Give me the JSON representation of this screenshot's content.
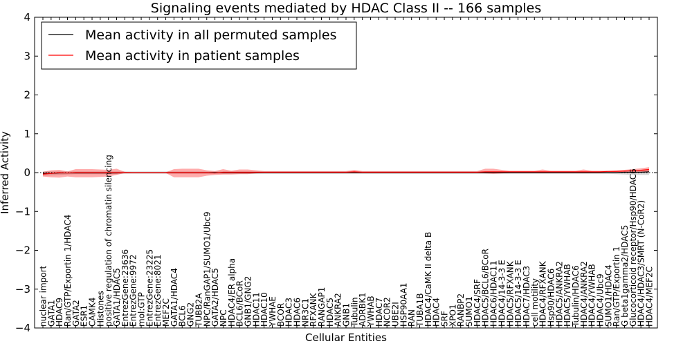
{
  "chart_data": {
    "type": "line",
    "title": "Signaling events mediated by HDAC Class II -- 166 samples",
    "xlabel": "Cellular Entities",
    "ylabel": "Inferred Activity",
    "ylim": [
      -4,
      4
    ],
    "yticks": [
      -4,
      -3,
      -2,
      -1,
      0,
      1,
      2,
      3,
      4
    ],
    "ytick_labels": [
      "−4",
      "−3",
      "−2",
      "−1",
      "0",
      "1",
      "2",
      "3",
      "4"
    ],
    "legend": {
      "location": "top-left",
      "entries": [
        {
          "label": "Mean activity in all permuted samples",
          "color": "#000000"
        },
        {
          "label": "Mean activity in patient samples",
          "color": "#ff0000"
        }
      ]
    },
    "categories": [
      "nuclear import",
      "GATA1",
      "HDAC9",
      "Ran/GTP/Exportin 1/HDAC4",
      "GATA2",
      "ESR1",
      "CAMK4",
      "Histones",
      "positive regulation of chromatin silencing",
      "GATA1/HDAC5",
      "EntrezGene:23636",
      "EntrezGene:9972",
      "mol:GTP",
      "EntrezGene:23225",
      "EntrezGene:8021",
      "MEF2C",
      "GATA1/HDAC4",
      "BCL6",
      "GNG2",
      "TUBB2A",
      "NPC/RanGAP1/SUMO1/Ubc9",
      "GATA2/HDAC5",
      "NPC",
      "HDAC4/ER alpha",
      "BCL6/BCoR",
      "GNB1/GNG2",
      "HDAC11",
      "HDAC10",
      "YWHAE",
      "BCOR",
      "HDAC3",
      "HDAC6",
      "NR3C1",
      "RFXANK",
      "RANGAP1",
      "HDAC5",
      "ANKRA2",
      "GNB1",
      "Tubulin",
      "ADRBK1",
      "YWHAB",
      "HDAC7",
      "NCOR2",
      "UBE2I",
      "HSP90AA1",
      "RAN",
      "TUBA1B",
      "HDAC4/CaMK II delta B",
      "HDAC4",
      "SRF",
      "XPO1",
      "RANBP2",
      "SUMO1",
      "HDAC4/SRF",
      "HDAC5/BCL6/BCoR",
      "HDAC6/HDAC11",
      "HDAC4/14-3-3 E",
      "HDAC5/RFXANK",
      "HDAC5/14-3-3 E",
      "HDAC7/HDAC3",
      "cell motility",
      "HDAC4/RFXANK",
      "Hsp90/HDAC6",
      "HDAC5/ANKRA2",
      "HDAC5/YWHAB",
      "Tubulin/HDAC6",
      "HDAC4/ANKRA2",
      "HDAC4/YWHAB",
      "HDAC4/Ubc9",
      "SUMO1/HDAC4",
      "Ran/GTP/Exportin 1",
      "G beta1gamma2/HDAC5",
      "Glucocorticoid receptor/Hsp90/HDAC6",
      "HDAC4/HDAC3/SMRT (N-CoR2)",
      "HDAC4/MEF2C"
    ],
    "series": [
      {
        "name": "Mean activity in patient samples",
        "color": "#ff0000",
        "values": [
          -0.04,
          -0.02,
          0.0,
          -0.01,
          0.0,
          0.0,
          0.0,
          0.0,
          0.0,
          0.0,
          0.0,
          0.0,
          0.0,
          0.0,
          0.0,
          0.0,
          0.0,
          0.0,
          0.0,
          0.0,
          0.0,
          -0.01,
          0.01,
          0.01,
          0.01,
          0.01,
          0.01,
          0.01,
          0.01,
          0.01,
          0.01,
          0.01,
          0.01,
          0.01,
          0.01,
          0.01,
          0.01,
          0.01,
          0.02,
          0.01,
          0.01,
          0.01,
          0.01,
          0.01,
          0.01,
          0.01,
          0.01,
          0.01,
          0.01,
          0.01,
          0.01,
          0.01,
          0.01,
          0.01,
          0.02,
          0.02,
          0.02,
          0.02,
          0.02,
          0.02,
          0.02,
          0.02,
          0.02,
          0.02,
          0.02,
          0.02,
          0.02,
          0.02,
          0.02,
          0.03,
          0.03,
          0.04,
          0.05,
          0.06,
          0.08
        ],
        "lower": [
          -0.1,
          -0.12,
          -0.13,
          -0.1,
          -0.12,
          -0.12,
          -0.12,
          -0.11,
          -0.1,
          -0.06,
          -0.01,
          -0.01,
          -0.01,
          -0.01,
          -0.01,
          -0.01,
          -0.12,
          -0.12,
          -0.12,
          -0.12,
          -0.08,
          -0.06,
          -0.05,
          -0.05,
          -0.04,
          -0.04,
          -0.02,
          -0.01,
          -0.01,
          -0.01,
          -0.01,
          -0.01,
          -0.01,
          -0.01,
          -0.01,
          -0.01,
          -0.01,
          -0.01,
          -0.01,
          -0.01,
          -0.01,
          -0.01,
          -0.01,
          -0.01,
          -0.01,
          -0.01,
          -0.01,
          -0.01,
          -0.01,
          -0.01,
          -0.01,
          -0.01,
          -0.01,
          -0.01,
          -0.02,
          -0.03,
          -0.02,
          -0.01,
          -0.01,
          -0.01,
          -0.01,
          -0.01,
          -0.01,
          -0.01,
          -0.01,
          -0.01,
          -0.01,
          -0.01,
          -0.01,
          -0.01,
          -0.01,
          -0.01,
          -0.01,
          0.0,
          0.01
        ],
        "upper": [
          0.02,
          0.06,
          0.07,
          0.03,
          0.09,
          0.09,
          0.09,
          0.08,
          0.07,
          0.1,
          0.02,
          0.01,
          0.01,
          0.01,
          0.01,
          0.01,
          0.09,
          0.1,
          0.1,
          0.1,
          0.06,
          0.04,
          0.09,
          0.05,
          0.08,
          0.08,
          0.06,
          0.04,
          0.04,
          0.04,
          0.04,
          0.04,
          0.04,
          0.04,
          0.04,
          0.04,
          0.04,
          0.04,
          0.07,
          0.04,
          0.04,
          0.04,
          0.04,
          0.04,
          0.04,
          0.04,
          0.04,
          0.04,
          0.04,
          0.04,
          0.04,
          0.04,
          0.04,
          0.04,
          0.1,
          0.1,
          0.07,
          0.05,
          0.05,
          0.05,
          0.05,
          0.08,
          0.05,
          0.05,
          0.05,
          0.05,
          0.08,
          0.05,
          0.05,
          0.05,
          0.06,
          0.07,
          0.09,
          0.11,
          0.14
        ]
      },
      {
        "name": "Mean activity in all permuted samples",
        "color": "#000000",
        "values": [
          -0.02,
          -0.02,
          -0.01,
          -0.01,
          -0.01,
          -0.01,
          -0.01,
          -0.01,
          -0.01,
          -0.01,
          0.0,
          0.0,
          0.0,
          0.0,
          0.0,
          0.0,
          0.0,
          0.0,
          0.0,
          0.0,
          0.0,
          0.0,
          0.0,
          0.0,
          0.0,
          0.0,
          0.0,
          0.0,
          0.0,
          0.0,
          0.0,
          0.0,
          0.0,
          0.0,
          0.0,
          0.0,
          0.0,
          0.0,
          0.0,
          0.0,
          0.0,
          0.0,
          0.0,
          0.0,
          0.0,
          0.0,
          0.0,
          0.0,
          0.0,
          0.0,
          0.0,
          0.0,
          0.0,
          0.0,
          0.0,
          0.0,
          0.0,
          0.0,
          0.0,
          0.0,
          0.0,
          0.0,
          0.0,
          0.0,
          0.0,
          0.0,
          0.0,
          0.0,
          0.0,
          0.0,
          0.0,
          0.01,
          0.01,
          0.01,
          0.02
        ],
        "lower": [
          -0.08,
          -0.07,
          -0.06,
          -0.05,
          -0.04,
          -0.04,
          -0.04,
          -0.04,
          -0.04,
          -0.04,
          -0.03,
          -0.03,
          -0.03,
          -0.03,
          -0.03,
          -0.03,
          -0.03,
          -0.03,
          -0.03,
          -0.03,
          -0.03,
          -0.03,
          -0.03,
          -0.03,
          -0.03,
          -0.03,
          -0.03,
          -0.03,
          -0.03,
          -0.03,
          -0.03,
          -0.03,
          -0.03,
          -0.03,
          -0.03,
          -0.03,
          -0.03,
          -0.03,
          -0.03,
          -0.03,
          -0.03,
          -0.03,
          -0.03,
          -0.03,
          -0.03,
          -0.03,
          -0.03,
          -0.03,
          -0.03,
          -0.03,
          -0.03,
          -0.03,
          -0.03,
          -0.03,
          -0.03,
          -0.03,
          -0.03,
          -0.03,
          -0.03,
          -0.03,
          -0.03,
          -0.03,
          -0.03,
          -0.03,
          -0.03,
          -0.03,
          -0.03,
          -0.03,
          -0.03,
          -0.03,
          -0.04,
          -0.05,
          -0.06,
          -0.06,
          -0.06
        ],
        "upper": [
          0.03,
          0.03,
          0.03,
          0.03,
          0.03,
          0.03,
          0.03,
          0.03,
          0.03,
          0.03,
          0.03,
          0.03,
          0.03,
          0.03,
          0.03,
          0.03,
          0.03,
          0.03,
          0.03,
          0.03,
          0.03,
          0.03,
          0.03,
          0.03,
          0.03,
          0.03,
          0.03,
          0.03,
          0.03,
          0.03,
          0.03,
          0.03,
          0.03,
          0.03,
          0.03,
          0.03,
          0.03,
          0.03,
          0.03,
          0.03,
          0.03,
          0.03,
          0.03,
          0.03,
          0.03,
          0.03,
          0.03,
          0.03,
          0.03,
          0.03,
          0.03,
          0.03,
          0.03,
          0.03,
          0.03,
          0.03,
          0.03,
          0.03,
          0.03,
          0.03,
          0.03,
          0.03,
          0.03,
          0.03,
          0.03,
          0.03,
          0.03,
          0.03,
          0.03,
          0.03,
          0.04,
          0.05,
          0.06,
          0.07,
          0.08
        ]
      }
    ],
    "reference_line": {
      "y": 0,
      "style": "dotted"
    }
  }
}
